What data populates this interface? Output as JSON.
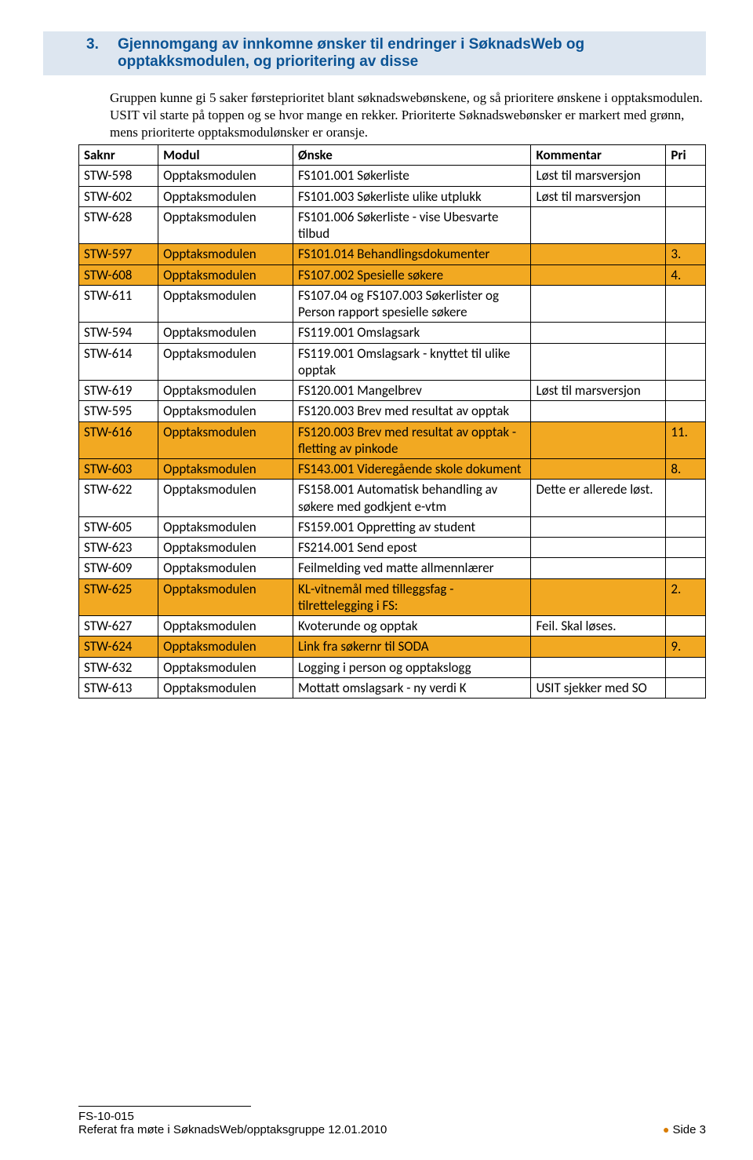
{
  "colors": {
    "heading_bg": "#dde6f0",
    "heading_text": "#0b5394",
    "highlight_row": "#f2a922",
    "border": "#000000",
    "bullet": "#d97c00"
  },
  "heading": {
    "number": "3.",
    "title": "Gjennomgang av innkomne ønsker til endringer i SøknadsWeb og opptakksmodulen, og prioritering av disse"
  },
  "intro": "Gruppen kunne gi 5 saker førsteprioritet blant søknadswebønskene, og så prioritere ønskene i opptaksmodulen. USIT vil starte på toppen og se hvor mange en rekker. Prioriterte Søknadswebønsker er markert med grønn, mens prioriterte opptaksmodulønsker er oransje.",
  "table": {
    "headers": {
      "saknr": "Saknr",
      "modul": "Modul",
      "onske": "Ønske",
      "kommentar": "Kommentar",
      "pri": "Pri"
    },
    "rows": [
      {
        "saknr": "STW-598",
        "modul": "Opptaksmodulen",
        "onske": "FS101.001 Søkerliste",
        "kommentar": "Løst til marsversjon",
        "pri": "",
        "hl": false
      },
      {
        "saknr": "STW-602",
        "modul": "Opptaksmodulen",
        "onske": "FS101.003 Søkerliste ulike utplukk",
        "kommentar": "Løst til marsversjon",
        "pri": "",
        "hl": false
      },
      {
        "saknr": "STW-628",
        "modul": "Opptaksmodulen",
        "onske": "FS101.006 Søkerliste - vise Ubesvarte tilbud",
        "kommentar": "",
        "pri": "",
        "hl": false
      },
      {
        "saknr": "STW-597",
        "modul": "Opptaksmodulen",
        "onske": "FS101.014 Behandlingsdokumenter",
        "kommentar": "",
        "pri": "3.",
        "hl": true
      },
      {
        "saknr": "STW-608",
        "modul": "Opptaksmodulen",
        "onske": "FS107.002 Spesielle søkere",
        "kommentar": "",
        "pri": "4.",
        "hl": true
      },
      {
        "saknr": "STW-611",
        "modul": "Opptaksmodulen",
        "onske": "FS107.04 og FS107.003 Søkerlister og Person rapport spesielle søkere",
        "kommentar": "",
        "pri": "",
        "hl": false
      },
      {
        "saknr": "STW-594",
        "modul": "Opptaksmodulen",
        "onske": "FS119.001 Omslagsark",
        "kommentar": "",
        "pri": "",
        "hl": false
      },
      {
        "saknr": "STW-614",
        "modul": "Opptaksmodulen",
        "onske": "FS119.001 Omslagsark - knyttet til ulike opptak",
        "kommentar": "",
        "pri": "",
        "hl": false
      },
      {
        "saknr": "STW-619",
        "modul": "Opptaksmodulen",
        "onske": "FS120.001 Mangelbrev",
        "kommentar": "Løst til marsversjon",
        "pri": "",
        "hl": false
      },
      {
        "saknr": "STW-595",
        "modul": "Opptaksmodulen",
        "onske": "FS120.003 Brev med resultat av opptak",
        "kommentar": "",
        "pri": "",
        "hl": false
      },
      {
        "saknr": "STW-616",
        "modul": "Opptaksmodulen",
        "onske": "FS120.003 Brev med resultat av opptak -fletting av pinkode",
        "kommentar": "",
        "pri": "11.",
        "hl": true
      },
      {
        "saknr": "STW-603",
        "modul": "Opptaksmodulen",
        "onske": "FS143.001 Videregående skole dokument",
        "kommentar": "",
        "pri": "8.",
        "hl": true
      },
      {
        "saknr": "STW-622",
        "modul": "Opptaksmodulen",
        "onske": "FS158.001 Automatisk behandling av søkere med godkjent e-vtm",
        "kommentar": "Dette er allerede løst.",
        "pri": "",
        "hl": false
      },
      {
        "saknr": "STW-605",
        "modul": "Opptaksmodulen",
        "onske": "FS159.001 Oppretting av student",
        "kommentar": "",
        "pri": "",
        "hl": false
      },
      {
        "saknr": "STW-623",
        "modul": "Opptaksmodulen",
        "onske": "FS214.001 Send epost",
        "kommentar": "",
        "pri": "",
        "hl": false
      },
      {
        "saknr": "STW-609",
        "modul": "Opptaksmodulen",
        "onske": "Feilmelding ved matte allmennlærer",
        "kommentar": "",
        "pri": "",
        "hl": false
      },
      {
        "saknr": "STW-625",
        "modul": "Opptaksmodulen",
        "onske": "KL-vitnemål med tilleggsfag - tilrettelegging i FS:",
        "kommentar": "",
        "pri": "2.",
        "hl": true
      },
      {
        "saknr": "STW-627",
        "modul": "Opptaksmodulen",
        "onske": "Kvoterunde og opptak",
        "kommentar": "Feil. Skal løses.",
        "pri": "",
        "hl": false
      },
      {
        "saknr": "STW-624",
        "modul": "Opptaksmodulen",
        "onske": "Link fra søkernr til SODA",
        "kommentar": "",
        "pri": "9.",
        "hl": true
      },
      {
        "saknr": "STW-632",
        "modul": "Opptaksmodulen",
        "onske": "Logging i person og opptakslogg",
        "kommentar": "",
        "pri": "",
        "hl": false
      },
      {
        "saknr": "STW-613",
        "modul": "Opptaksmodulen",
        "onske": "Mottatt omslagsark - ny verdi K",
        "kommentar": "USIT sjekker med SO",
        "pri": "",
        "hl": false
      }
    ]
  },
  "footer": {
    "ref": "FS-10-015",
    "sub": "Referat fra møte i SøknadsWeb/opptaksgruppe 12.01.2010",
    "page_label": "Side 3"
  }
}
